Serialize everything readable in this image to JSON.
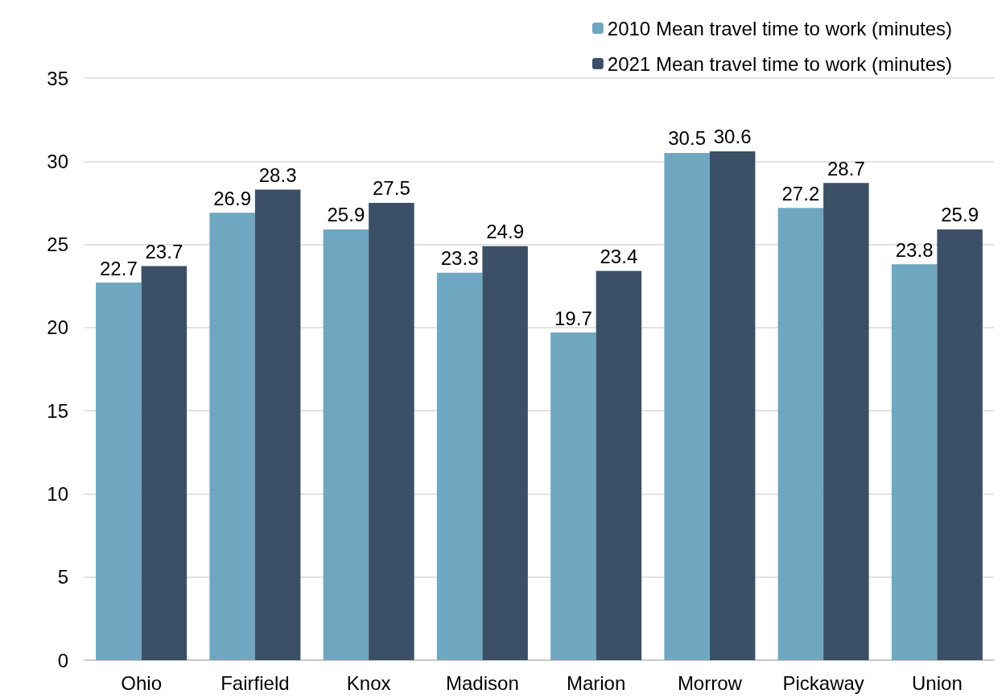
{
  "chart_data": {
    "type": "bar",
    "categories": [
      "Ohio",
      "Fairfield",
      "Knox",
      "Madison",
      "Marion",
      "Morrow",
      "Pickaway",
      "Union"
    ],
    "series": [
      {
        "name": "2010 Mean travel time to work (minutes)",
        "color": "#6fa7c0",
        "values": [
          22.7,
          26.9,
          25.9,
          23.3,
          19.7,
          30.5,
          27.2,
          23.8
        ]
      },
      {
        "name": "2021 Mean travel time to work (minutes)",
        "color": "#3b5066",
        "values": [
          23.7,
          28.3,
          27.5,
          24.9,
          23.4,
          30.6,
          28.7,
          25.9
        ]
      }
    ],
    "ylim": [
      0,
      35
    ],
    "yticks": [
      0,
      5,
      10,
      15,
      20,
      25,
      30,
      35
    ],
    "grid": "y",
    "legend": "top right",
    "data_labels": true
  }
}
